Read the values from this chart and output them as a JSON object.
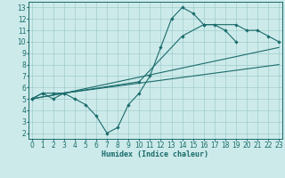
{
  "line1_x": [
    0,
    1,
    2,
    3,
    4,
    5,
    6,
    7,
    8,
    9,
    10,
    11,
    12,
    13,
    14,
    15,
    16,
    17,
    18,
    19
  ],
  "line1_y": [
    5.0,
    5.5,
    5.0,
    5.5,
    5.0,
    4.5,
    3.5,
    2.0,
    2.5,
    4.5,
    5.5,
    7.0,
    9.5,
    12.0,
    13.0,
    12.5,
    11.5,
    11.5,
    11.0,
    10.0
  ],
  "line2_x": [
    0,
    1,
    2,
    3,
    10,
    14,
    16,
    19,
    20,
    21,
    22,
    23
  ],
  "line2_y": [
    5.0,
    5.5,
    5.5,
    5.5,
    6.5,
    10.5,
    11.5,
    11.5,
    11.0,
    11.0,
    10.5,
    10.0
  ],
  "line3_x": [
    0,
    3,
    23
  ],
  "line3_y": [
    5.0,
    5.5,
    9.5
  ],
  "line4_x": [
    0,
    3,
    23
  ],
  "line4_y": [
    5.0,
    5.5,
    8.0
  ],
  "color": "#1a6b6b",
  "bg_color": "#cdeaea",
  "grid_color": "#a0cccc",
  "xlim": [
    -0.3,
    23.3
  ],
  "ylim": [
    1.5,
    13.5
  ],
  "xlabel": "Humidex (Indice chaleur)",
  "xticks": [
    0,
    1,
    2,
    3,
    4,
    5,
    6,
    7,
    8,
    9,
    10,
    11,
    12,
    13,
    14,
    15,
    16,
    17,
    18,
    19,
    20,
    21,
    22,
    23
  ],
  "yticks": [
    2,
    3,
    4,
    5,
    6,
    7,
    8,
    9,
    10,
    11,
    12,
    13
  ],
  "axis_fontsize": 6,
  "tick_fontsize": 5.5
}
